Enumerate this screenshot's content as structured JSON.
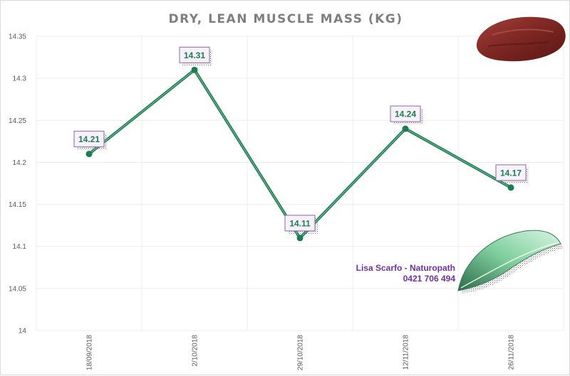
{
  "chart_data": {
    "type": "line",
    "title": "DRY, LEAN MUSCLE MASS (KG)",
    "categories": [
      "18/09/2018",
      "2/10/2018",
      "29/10/2018",
      "12/11/2018",
      "26/11/2018"
    ],
    "values": [
      14.21,
      14.31,
      14.11,
      14.24,
      14.17
    ],
    "data_labels": [
      "14.21",
      "14.31",
      "14.11",
      "14.24",
      "14.17"
    ],
    "ylim": [
      14,
      14.35
    ],
    "yticks": [
      "14",
      "14.05",
      "14.1",
      "14.15",
      "14.2",
      "14.25",
      "14.3",
      "14.35"
    ],
    "grid": true,
    "legend": "none",
    "series_color": "#1e7b52"
  },
  "watermark": {
    "line1": "Lisa Scarfo - Naturopath",
    "line2": "0421 706 494",
    "color": "#7030a0",
    "icons": [
      "meat-icon",
      "leaf-icon"
    ]
  }
}
